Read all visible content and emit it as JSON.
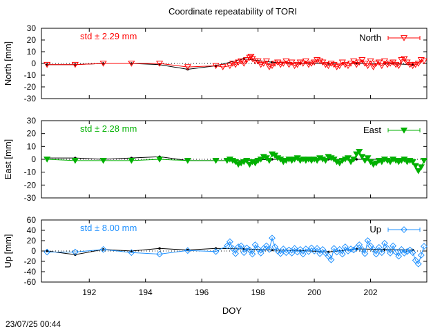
{
  "title": "Coordinate repeatability of TORI",
  "timestamp": "23/07/25 00:44",
  "chart_data": {
    "type": "scatter",
    "title": "Coordinate repeatability of TORI",
    "xlabel": "DOY",
    "xlim": [
      190.3,
      204.0
    ],
    "xticks": [
      "192",
      "194",
      "196",
      "198",
      "200",
      "202"
    ],
    "xtick_values": [
      192,
      194,
      196,
      198,
      200,
      202
    ],
    "grid": false,
    "panels": [
      {
        "component": "North",
        "ylabel": "North [mm]",
        "ylim": [
          -30,
          30
        ],
        "yticks": [
          "30",
          "20",
          "10",
          "0",
          "-10",
          "-20",
          "-30"
        ],
        "ytick_values": [
          30,
          20,
          10,
          0,
          -10,
          -20,
          -30
        ],
        "std_label": "std ± 2.29 mm",
        "legend": "North",
        "legend_position": "top-right",
        "color": "#ff0000",
        "marker": "triangle-down-open",
        "daily_x": [
          190.5,
          191.5,
          192.5,
          193.5,
          194.5,
          195.5,
          196.5,
          197.5,
          198.5,
          199.5,
          200.5,
          201.5,
          202.5,
          203.5
        ],
        "daily_y": [
          -1,
          -1,
          0,
          0,
          -1,
          -5,
          -2,
          4,
          1,
          0,
          0,
          0,
          0,
          -1
        ],
        "sub_x": [
          190.5,
          191.5,
          192.5,
          193.5,
          194.5,
          195.5,
          196.5,
          196.75,
          197.0,
          197.1,
          197.2,
          197.3,
          197.4,
          197.5,
          197.6,
          197.7,
          197.75,
          197.8,
          197.9,
          198.0,
          198.1,
          198.2,
          198.3,
          198.4,
          198.5,
          198.6,
          198.7,
          198.8,
          198.9,
          199.0,
          199.1,
          199.2,
          199.3,
          199.4,
          199.5,
          199.6,
          199.7,
          199.8,
          199.9,
          200.0,
          200.1,
          200.2,
          200.3,
          200.4,
          200.5,
          200.6,
          200.7,
          200.8,
          200.9,
          201.0,
          201.1,
          201.2,
          201.3,
          201.4,
          201.5,
          201.6,
          201.7,
          201.8,
          201.9,
          202.0,
          202.1,
          202.2,
          202.3,
          202.4,
          202.5,
          202.6,
          202.7,
          202.8,
          202.9,
          203.0,
          203.1,
          203.2,
          203.3,
          203.4,
          203.5,
          203.6,
          203.7,
          203.8,
          203.9
        ],
        "sub_y": [
          -1,
          -1,
          0,
          0,
          0,
          -3,
          -2,
          -3,
          -2,
          0,
          -1,
          1,
          2,
          0,
          3,
          5,
          6,
          4,
          2,
          2,
          -1,
          0,
          2,
          -3,
          -2,
          0,
          1,
          -1,
          0,
          2,
          -1,
          1,
          -2,
          -1,
          1,
          0,
          2,
          -1,
          0,
          1,
          3,
          2,
          1,
          -1,
          -2,
          0,
          -1,
          -3,
          -2,
          1,
          -1,
          -2,
          0,
          2,
          -1,
          1,
          3,
          0,
          -2,
          2,
          -3,
          0,
          1,
          -2,
          2,
          -1,
          0,
          1,
          -1,
          -2,
          3,
          4,
          1,
          -1,
          -2,
          -1,
          0,
          3,
          2
        ]
      },
      {
        "component": "East",
        "ylabel": "East [mm]",
        "ylim": [
          -30,
          30
        ],
        "yticks": [
          "30",
          "20",
          "10",
          "0",
          "-10",
          "-20",
          "-30"
        ],
        "ytick_values": [
          30,
          20,
          10,
          0,
          -10,
          -20,
          -30
        ],
        "std_label": "std ± 2.28 mm",
        "legend": "East",
        "legend_position": "top-right",
        "color": "#00b000",
        "marker": "triangle-down-filled",
        "daily_x": [
          190.5,
          191.5,
          192.5,
          193.5,
          194.5,
          195.5,
          196.5,
          197.5,
          198.5,
          199.5,
          200.5,
          201.5,
          202.5,
          203.5
        ],
        "daily_y": [
          1,
          1,
          0,
          1,
          2,
          -1,
          -1,
          -1,
          0,
          0,
          0,
          0,
          0,
          -1
        ],
        "sub_x": [
          190.5,
          191.5,
          192.5,
          193.5,
          194.5,
          195.5,
          196.5,
          196.9,
          197.0,
          197.1,
          197.2,
          197.3,
          197.4,
          197.5,
          197.6,
          197.7,
          197.8,
          197.9,
          198.0,
          198.1,
          198.2,
          198.3,
          198.4,
          198.5,
          198.6,
          198.7,
          198.8,
          198.9,
          199.0,
          199.1,
          199.2,
          199.3,
          199.4,
          199.5,
          199.6,
          199.7,
          199.8,
          199.9,
          200.0,
          200.1,
          200.2,
          200.3,
          200.4,
          200.5,
          200.6,
          200.7,
          200.8,
          200.9,
          201.0,
          201.1,
          201.2,
          201.3,
          201.4,
          201.5,
          201.6,
          201.7,
          201.8,
          201.9,
          202.0,
          202.1,
          202.2,
          202.3,
          202.4,
          202.5,
          202.6,
          202.7,
          202.8,
          202.9,
          203.0,
          203.1,
          203.2,
          203.3,
          203.4,
          203.5,
          203.6,
          203.7,
          203.8,
          203.9
        ],
        "sub_y": [
          0,
          -1,
          -1,
          -1,
          0,
          -1,
          -1,
          -1,
          0,
          -1,
          -2,
          -4,
          -3,
          -2,
          -1,
          -4,
          -2,
          -3,
          -1,
          0,
          2,
          1,
          -1,
          4,
          3,
          1,
          0,
          -2,
          -1,
          0,
          -1,
          0,
          1,
          -1,
          0,
          -1,
          0,
          -1,
          0,
          -1,
          1,
          0,
          -1,
          2,
          1,
          0,
          -2,
          -3,
          -1,
          0,
          1,
          -2,
          0,
          4,
          6,
          2,
          -1,
          1,
          -2,
          -4,
          -3,
          -1,
          -2,
          0,
          -1,
          -2,
          0,
          -1,
          -2,
          -1,
          0,
          -2,
          -1,
          -2,
          -5,
          -9,
          -6,
          -1
        ]
      },
      {
        "component": "Up",
        "ylabel": "Up [mm]",
        "ylim": [
          -60,
          60
        ],
        "yticks": [
          "60",
          "40",
          "20",
          "0",
          "-20",
          "-40",
          "-60"
        ],
        "ytick_values": [
          60,
          40,
          20,
          0,
          -20,
          -40,
          -60
        ],
        "std_label": "std ± 8.00 mm",
        "legend": "Up",
        "legend_position": "top-right",
        "color": "#1e90ff",
        "marker": "diamond-open",
        "daily_x": [
          190.5,
          191.5,
          192.5,
          193.5,
          194.5,
          195.5,
          196.5,
          197.5,
          198.5,
          199.5,
          200.5,
          201.5,
          202.5,
          203.5
        ],
        "daily_y": [
          0,
          -7,
          3,
          0,
          5,
          2,
          5,
          4,
          2,
          1,
          -2,
          4,
          3,
          2
        ],
        "sub_x": [
          190.5,
          191.5,
          192.5,
          193.5,
          194.5,
          195.5,
          196.5,
          196.9,
          197.0,
          197.1,
          197.2,
          197.3,
          197.4,
          197.5,
          197.6,
          197.7,
          197.8,
          197.9,
          198.0,
          198.1,
          198.2,
          198.3,
          198.4,
          198.5,
          198.6,
          198.7,
          198.8,
          198.9,
          199.0,
          199.1,
          199.2,
          199.3,
          199.4,
          199.5,
          199.6,
          199.7,
          199.8,
          199.9,
          200.0,
          200.1,
          200.2,
          200.3,
          200.4,
          200.5,
          200.6,
          200.7,
          200.8,
          200.9,
          201.0,
          201.1,
          201.2,
          201.3,
          201.4,
          201.5,
          201.6,
          201.7,
          201.8,
          201.9,
          202.0,
          202.1,
          202.2,
          202.3,
          202.4,
          202.5,
          202.6,
          202.7,
          202.8,
          202.9,
          203.0,
          203.1,
          203.2,
          203.3,
          203.4,
          203.5,
          203.6,
          203.7,
          203.8,
          203.9
        ],
        "sub_y": [
          -2,
          -2,
          3,
          -3,
          -6,
          1,
          -1,
          10,
          18,
          5,
          -5,
          8,
          10,
          -3,
          6,
          2,
          -6,
          12,
          4,
          -4,
          5,
          10,
          3,
          25,
          8,
          0,
          -5,
          4,
          -3,
          2,
          -4,
          5,
          -2,
          3,
          -6,
          4,
          -1,
          6,
          0,
          5,
          -5,
          3,
          -4,
          -10,
          -17,
          5,
          -2,
          3,
          -6,
          8,
          0,
          4,
          2,
          6,
          12,
          3,
          -5,
          20,
          10,
          3,
          -6,
          7,
          -3,
          15,
          5,
          -4,
          10,
          -2,
          -10,
          3,
          -4,
          -1,
          2,
          -3,
          -18,
          -25,
          -8,
          9
        ]
      }
    ]
  }
}
